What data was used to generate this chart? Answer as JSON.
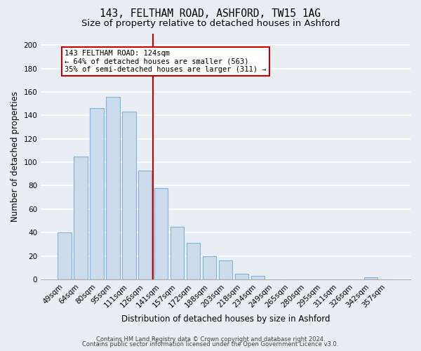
{
  "title1": "143, FELTHAM ROAD, ASHFORD, TW15 1AG",
  "title2": "Size of property relative to detached houses in Ashford",
  "xlabel": "Distribution of detached houses by size in Ashford",
  "ylabel": "Number of detached properties",
  "bar_labels": [
    "49sqm",
    "64sqm",
    "80sqm",
    "95sqm",
    "111sqm",
    "126sqm",
    "141sqm",
    "157sqm",
    "172sqm",
    "188sqm",
    "203sqm",
    "218sqm",
    "234sqm",
    "249sqm",
    "265sqm",
    "280sqm",
    "295sqm",
    "311sqm",
    "326sqm",
    "342sqm",
    "357sqm"
  ],
  "bar_values": [
    40,
    105,
    146,
    156,
    143,
    93,
    78,
    45,
    31,
    20,
    16,
    5,
    3,
    0,
    0,
    0,
    0,
    0,
    0,
    2,
    0
  ],
  "bar_color": "#cddcec",
  "bar_edge_color": "#7fb2d8",
  "vline_x": 5.5,
  "vline_color": "#cc0000",
  "annotation_title": "143 FELTHAM ROAD: 124sqm",
  "annotation_line1": "← 64% of detached houses are smaller (563)",
  "annotation_line2": "35% of semi-detached houses are larger (311) →",
  "annotation_box_color": "white",
  "annotation_box_edge": "#cc0000",
  "ylim": [
    0,
    210
  ],
  "yticks": [
    0,
    20,
    40,
    60,
    80,
    100,
    120,
    140,
    160,
    180,
    200
  ],
  "footer1": "Contains HM Land Registry data © Crown copyright and database right 2024.",
  "footer2": "Contains public sector information licensed under the Open Government Licence v3.0.",
  "bg_color": "#e8eef4",
  "plot_bg_color": "#e8eef4",
  "grid_color": "#ffffff",
  "title_fontsize": 10.5,
  "subtitle_fontsize": 9.5,
  "axis_label_fontsize": 8.5,
  "tick_fontsize": 7.5,
  "footer_fontsize": 6.0
}
